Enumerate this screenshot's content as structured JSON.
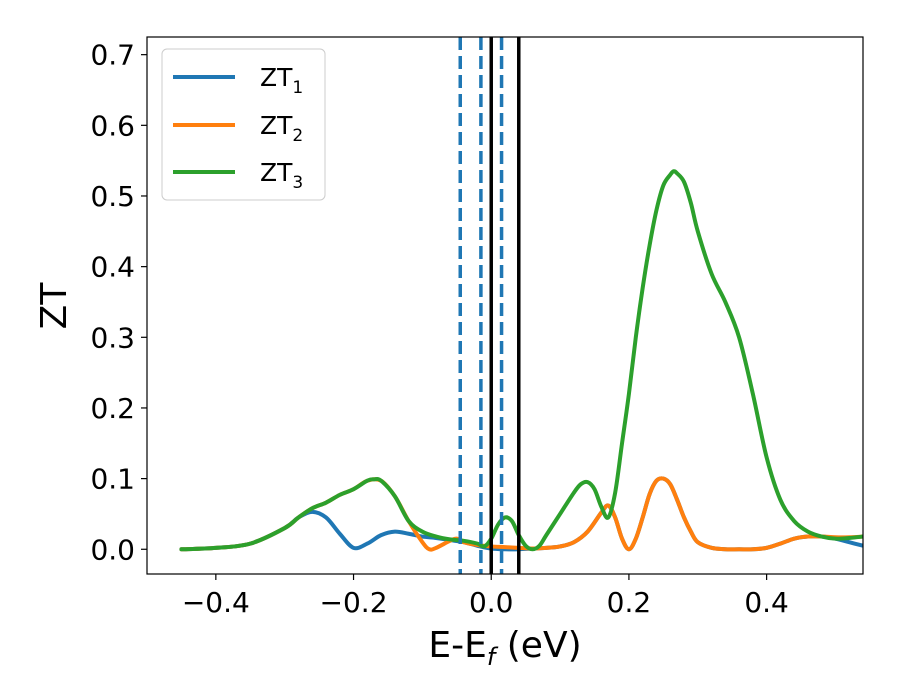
{
  "chart_data": {
    "type": "line",
    "xlabel": "E-E",
    "xlabel_sub": "f",
    "xlabel_unit": "(eV)",
    "ylabel": "ZT",
    "xlim": [
      -0.5,
      0.54
    ],
    "ylim": [
      -0.035,
      0.725
    ],
    "xticks": [
      -0.4,
      -0.2,
      0.0,
      0.2,
      0.4
    ],
    "xtick_labels": [
      "−0.4",
      "−0.2",
      "0.0",
      "0.2",
      "0.4"
    ],
    "yticks": [
      0.0,
      0.1,
      0.2,
      0.3,
      0.4,
      0.5,
      0.6,
      0.7
    ],
    "ytick_labels": [
      "0.0",
      "0.1",
      "0.2",
      "0.3",
      "0.4",
      "0.5",
      "0.6",
      "0.7"
    ],
    "grid": false,
    "legend_position": "top-left",
    "series": [
      {
        "name": "ZT",
        "sub": "1",
        "color": "#1f77b4",
        "x": [
          -0.45,
          -0.4,
          -0.35,
          -0.3,
          -0.28,
          -0.26,
          -0.24,
          -0.22,
          -0.2,
          -0.18,
          -0.16,
          -0.14,
          -0.12,
          -0.1,
          -0.08,
          -0.06,
          -0.04,
          -0.02,
          0.0,
          0.02,
          0.04,
          0.06,
          0.08,
          0.1,
          0.12,
          0.14,
          0.16,
          0.17,
          0.18,
          0.19,
          0.2,
          0.21,
          0.22,
          0.23,
          0.24,
          0.25,
          0.26,
          0.27,
          0.28,
          0.29,
          0.3,
          0.32,
          0.34,
          0.36,
          0.38,
          0.4,
          0.42,
          0.44,
          0.46,
          0.48,
          0.5,
          0.52,
          0.54
        ],
        "y": [
          0.0,
          0.002,
          0.008,
          0.03,
          0.045,
          0.053,
          0.045,
          0.022,
          0.002,
          0.008,
          0.02,
          0.025,
          0.022,
          0.018,
          0.016,
          0.013,
          0.01,
          0.005,
          0.001,
          0.0,
          0.0,
          0.001,
          0.002,
          0.004,
          0.01,
          0.025,
          0.052,
          0.062,
          0.045,
          0.015,
          0.0,
          0.015,
          0.045,
          0.078,
          0.097,
          0.1,
          0.092,
          0.07,
          0.045,
          0.025,
          0.01,
          0.002,
          0.0,
          0.0,
          0.0,
          0.002,
          0.008,
          0.015,
          0.018,
          0.018,
          0.015,
          0.01,
          0.005
        ]
      },
      {
        "name": "ZT",
        "sub": "2",
        "color": "#ff7f0e",
        "x": [
          -0.45,
          -0.4,
          -0.35,
          -0.3,
          -0.28,
          -0.26,
          -0.24,
          -0.22,
          -0.2,
          -0.18,
          -0.16,
          -0.14,
          -0.12,
          -0.1,
          -0.09,
          -0.08,
          -0.06,
          -0.05,
          -0.04,
          -0.02,
          0.0,
          0.02,
          0.04,
          0.06,
          0.08,
          0.1,
          0.12,
          0.14,
          0.16,
          0.17,
          0.18,
          0.19,
          0.2,
          0.21,
          0.22,
          0.23,
          0.24,
          0.25,
          0.26,
          0.27,
          0.28,
          0.29,
          0.3,
          0.32,
          0.34,
          0.36,
          0.38,
          0.4,
          0.42,
          0.44,
          0.46,
          0.48,
          0.5,
          0.52,
          0.54
        ],
        "y": [
          0.0,
          0.002,
          0.008,
          0.03,
          0.045,
          0.058,
          0.066,
          0.077,
          0.085,
          0.097,
          0.097,
          0.075,
          0.04,
          0.01,
          0.0,
          0.002,
          0.012,
          0.015,
          0.01,
          0.006,
          0.004,
          0.003,
          0.002,
          0.001,
          0.002,
          0.004,
          0.01,
          0.025,
          0.052,
          0.062,
          0.045,
          0.015,
          0.0,
          0.015,
          0.045,
          0.078,
          0.097,
          0.1,
          0.092,
          0.07,
          0.045,
          0.025,
          0.01,
          0.002,
          0.0,
          0.0,
          0.0,
          0.002,
          0.008,
          0.015,
          0.018,
          0.018,
          0.017,
          0.017,
          0.018
        ]
      },
      {
        "name": "ZT",
        "sub": "3",
        "color": "#2ca02c",
        "x": [
          -0.45,
          -0.4,
          -0.35,
          -0.3,
          -0.28,
          -0.26,
          -0.24,
          -0.22,
          -0.2,
          -0.18,
          -0.17,
          -0.16,
          -0.14,
          -0.12,
          -0.1,
          -0.08,
          -0.06,
          -0.04,
          -0.02,
          -0.01,
          0.0,
          0.01,
          0.02,
          0.03,
          0.04,
          0.05,
          0.06,
          0.07,
          0.08,
          0.1,
          0.12,
          0.13,
          0.14,
          0.15,
          0.16,
          0.17,
          0.18,
          0.19,
          0.2,
          0.21,
          0.22,
          0.23,
          0.24,
          0.25,
          0.26,
          0.265,
          0.27,
          0.28,
          0.29,
          0.3,
          0.32,
          0.34,
          0.36,
          0.38,
          0.4,
          0.42,
          0.44,
          0.46,
          0.48,
          0.5,
          0.52,
          0.54
        ],
        "y": [
          0.0,
          0.002,
          0.008,
          0.03,
          0.045,
          0.058,
          0.066,
          0.077,
          0.085,
          0.097,
          0.099,
          0.097,
          0.075,
          0.04,
          0.025,
          0.018,
          0.014,
          0.012,
          0.008,
          0.004,
          0.015,
          0.035,
          0.045,
          0.04,
          0.02,
          0.005,
          0.0,
          0.005,
          0.02,
          0.05,
          0.08,
          0.092,
          0.095,
          0.085,
          0.06,
          0.045,
          0.08,
          0.15,
          0.22,
          0.3,
          0.37,
          0.43,
          0.48,
          0.515,
          0.53,
          0.535,
          0.532,
          0.52,
          0.49,
          0.45,
          0.39,
          0.35,
          0.3,
          0.22,
          0.13,
          0.07,
          0.04,
          0.025,
          0.018,
          0.015,
          0.016,
          0.018
        ]
      }
    ],
    "vlines": [
      {
        "x": -0.045,
        "style": "dashed",
        "color": "#1f77b4"
      },
      {
        "x": -0.015,
        "style": "dashed",
        "color": "#1f77b4"
      },
      {
        "x": 0.0,
        "style": "solid",
        "color": "#000000"
      },
      {
        "x": 0.015,
        "style": "dashed",
        "color": "#1f77b4"
      },
      {
        "x": 0.04,
        "style": "solid",
        "color": "#000000"
      }
    ]
  }
}
